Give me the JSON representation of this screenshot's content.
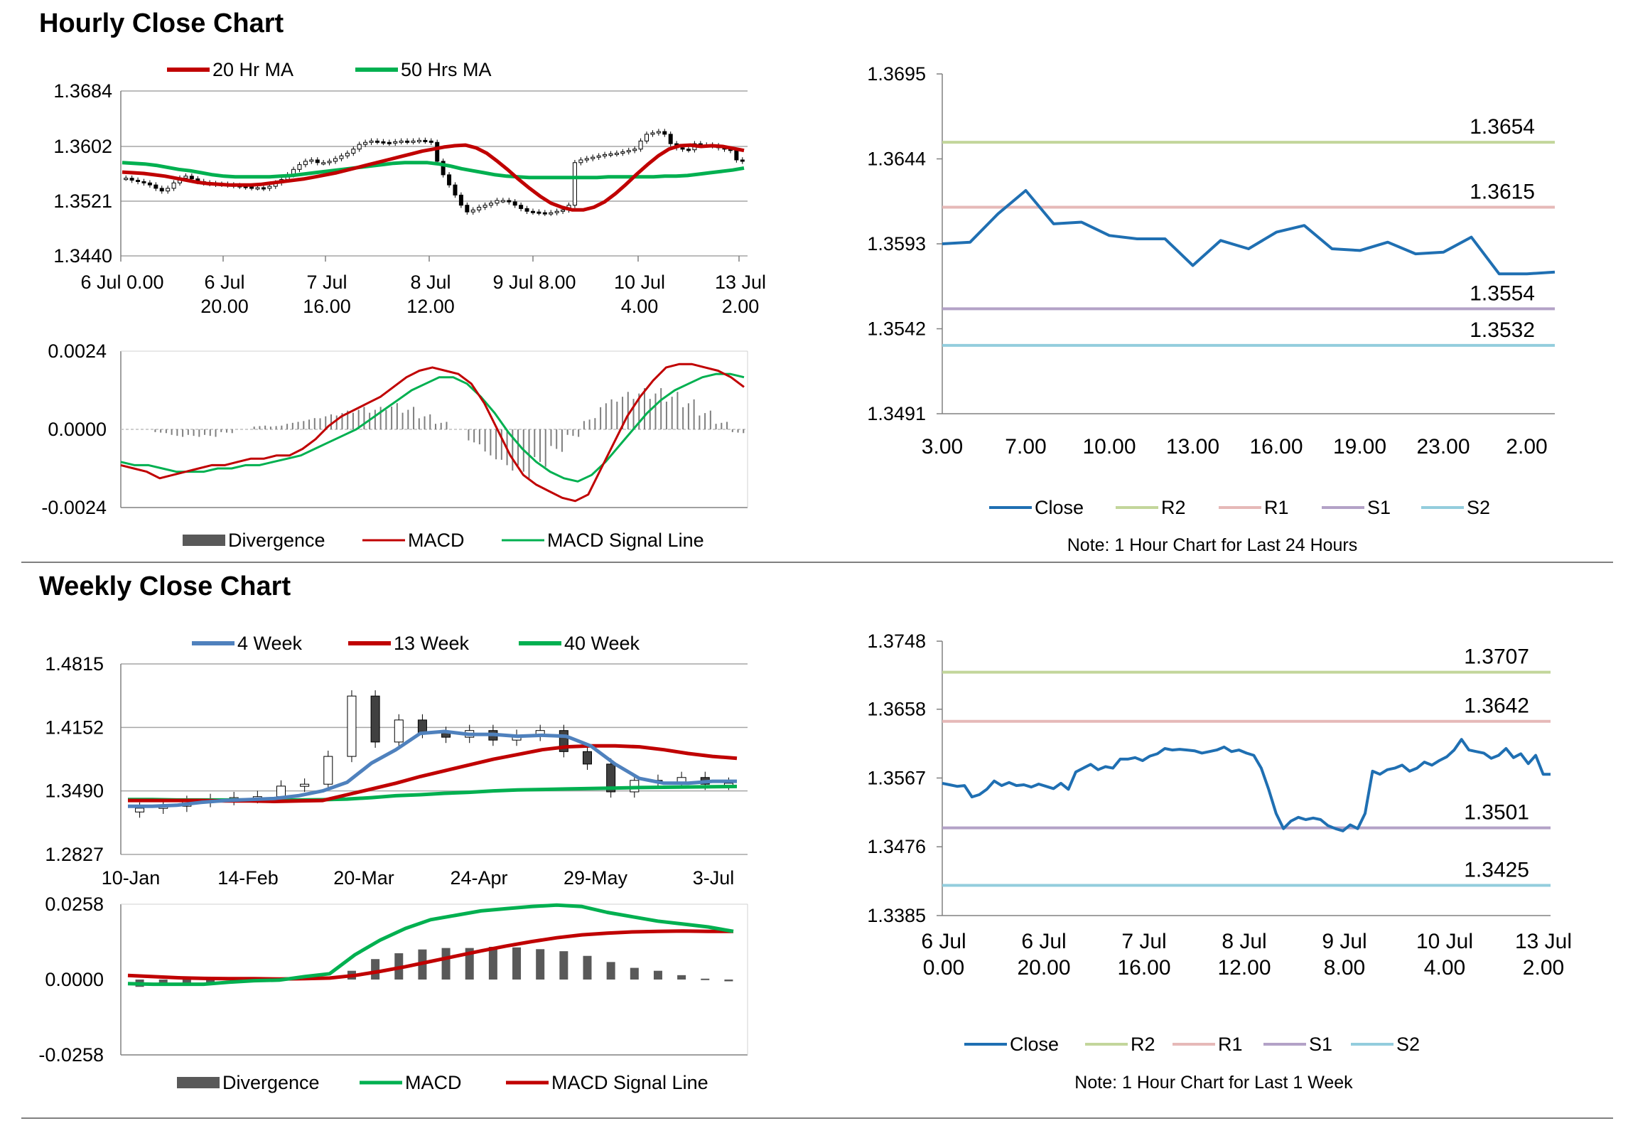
{
  "titles": {
    "hourly": "Hourly Close Chart",
    "weekly": "Weekly Close Chart"
  },
  "colors": {
    "red": "#c00000",
    "green": "#00b050",
    "blue": "#4f81bd",
    "closeBlue": "#1f6fb2",
    "r2": "#c3d69b",
    "r1": "#e6b9b8",
    "s1": "#b3a2c7",
    "s2": "#93cddd",
    "divergence": "#595959",
    "grid": "#a6a6a6"
  },
  "chart_data": [
    {
      "id": "hourly-price",
      "type": "candlestick",
      "legend": [
        "20 Hr MA",
        "50 Hrs MA"
      ],
      "yticks": [
        "1.3684",
        "1.3602",
        "1.3521",
        "1.3440"
      ],
      "ylim": [
        1.344,
        1.3684
      ],
      "xticks": [
        [
          "6 Jul 0.00",
          ""
        ],
        [
          "6 Jul",
          "20.00"
        ],
        [
          "7 Jul",
          "16.00"
        ],
        [
          "8 Jul",
          "12.00"
        ],
        [
          "9 Jul 8.00",
          ""
        ],
        [
          "10 Jul",
          "4.00"
        ],
        [
          "13 Jul",
          "2.00"
        ]
      ],
      "closes": [
        1.3555,
        1.3552,
        1.355,
        1.3548,
        1.3545,
        1.354,
        1.3536,
        1.354,
        1.3548,
        1.3555,
        1.3558,
        1.3554,
        1.355,
        1.3548,
        1.3547,
        1.3546,
        1.3546,
        1.3545,
        1.3544,
        1.3543,
        1.3542,
        1.3541,
        1.3541,
        1.354,
        1.3543,
        1.3548,
        1.3553,
        1.356,
        1.3568,
        1.3575,
        1.358,
        1.3582,
        1.3578,
        1.3578,
        1.358,
        1.3584,
        1.3588,
        1.3592,
        1.3598,
        1.3605,
        1.3608,
        1.361,
        1.3609,
        1.3608,
        1.3607,
        1.3609,
        1.361,
        1.3609,
        1.361,
        1.3611,
        1.361,
        1.3608,
        1.358,
        1.356,
        1.3545,
        1.353,
        1.3515,
        1.3505,
        1.3508,
        1.3512,
        1.3515,
        1.3518,
        1.3522,
        1.3522,
        1.352,
        1.3515,
        1.351,
        1.3506,
        1.3505,
        1.3504,
        1.3503,
        1.3504,
        1.3506,
        1.3508,
        1.3515,
        1.3578,
        1.3582,
        1.3584,
        1.3586,
        1.3588,
        1.359,
        1.3591,
        1.3592,
        1.3594,
        1.3596,
        1.3598,
        1.361,
        1.362,
        1.3622,
        1.3624,
        1.362,
        1.3606,
        1.36,
        1.3598,
        1.3597,
        1.3606,
        1.3604,
        1.3604,
        1.3603,
        1.36,
        1.3598,
        1.3596,
        1.3582,
        1.358
      ],
      "ma20": [
        1.3564,
        1.3563,
        1.3562,
        1.356,
        1.3558,
        1.3555,
        1.3552,
        1.3549,
        1.3547,
        1.3546,
        1.3545,
        1.3545,
        1.3545,
        1.3546,
        1.3548,
        1.355,
        1.3552,
        1.3554,
        1.3557,
        1.356,
        1.3563,
        1.3567,
        1.3571,
        1.3575,
        1.3579,
        1.3583,
        1.3587,
        1.3591,
        1.3595,
        1.3598,
        1.3601,
        1.3603,
        1.3604,
        1.36,
        1.3592,
        1.358,
        1.3567,
        1.3553,
        1.354,
        1.3528,
        1.3518,
        1.3512,
        1.3508,
        1.3508,
        1.3512,
        1.352,
        1.3532,
        1.3546,
        1.3561,
        1.3575,
        1.3588,
        1.3598,
        1.3603,
        1.3604,
        1.3602,
        1.3603,
        1.3602,
        1.3599,
        1.3596
      ],
      "ma50": [
        1.3578,
        1.3577,
        1.3576,
        1.3574,
        1.3571,
        1.3568,
        1.3566,
        1.3563,
        1.356,
        1.3558,
        1.3557,
        1.3557,
        1.3557,
        1.3557,
        1.3558,
        1.3559,
        1.3561,
        1.3563,
        1.3565,
        1.3567,
        1.3569,
        1.3571,
        1.3573,
        1.3575,
        1.3577,
        1.3578,
        1.3578,
        1.3578,
        1.3576,
        1.3573,
        1.3569,
        1.3566,
        1.3563,
        1.356,
        1.3558,
        1.3557,
        1.3556,
        1.3556,
        1.3556,
        1.3556,
        1.3556,
        1.3556,
        1.3556,
        1.3557,
        1.3557,
        1.3557,
        1.3557,
        1.3557,
        1.3558,
        1.3558,
        1.3559,
        1.3561,
        1.3563,
        1.3565,
        1.3567,
        1.357
      ]
    },
    {
      "id": "hourly-macd",
      "type": "line+bar",
      "legend": [
        "Divergence",
        "MACD",
        "MACD Signal Line"
      ],
      "yticks": [
        "0.0024",
        "0.0000",
        "-0.0024"
      ],
      "ylim": [
        -0.0024,
        0.0024
      ],
      "macd": [
        -0.0011,
        -0.0012,
        -0.0013,
        -0.0015,
        -0.0014,
        -0.0013,
        -0.0012,
        -0.0011,
        -0.0011,
        -0.001,
        -0.0009,
        -0.0009,
        -0.0008,
        -0.0008,
        -0.0006,
        -0.0003,
        0.0001,
        0.0004,
        0.0006,
        0.0008,
        0.001,
        0.0013,
        0.0016,
        0.0018,
        0.0019,
        0.0018,
        0.0017,
        0.0014,
        0.0008,
        0.0,
        -0.0008,
        -0.0014,
        -0.0017,
        -0.0019,
        -0.0021,
        -0.0022,
        -0.002,
        -0.0012,
        -0.0004,
        0.0004,
        0.001,
        0.0015,
        0.0019,
        0.002,
        0.002,
        0.0019,
        0.0018,
        0.0016,
        0.0013
      ],
      "signal": [
        -0.001,
        -0.0011,
        -0.0011,
        -0.0012,
        -0.0013,
        -0.0013,
        -0.0013,
        -0.0012,
        -0.0012,
        -0.0011,
        -0.0011,
        -0.001,
        -0.0009,
        -0.0008,
        -0.0006,
        -0.0004,
        -0.0002,
        0.0,
        0.0003,
        0.0006,
        0.0009,
        0.0012,
        0.0014,
        0.0016,
        0.0016,
        0.0014,
        0.001,
        0.0005,
        -0.0001,
        -0.0006,
        -0.001,
        -0.0013,
        -0.0015,
        -0.0016,
        -0.0014,
        -0.001,
        -0.0005,
        0.0,
        0.0005,
        0.0009,
        0.0012,
        0.0014,
        0.0016,
        0.0017,
        0.0017,
        0.0016
      ],
      "divergence": [
        0.0,
        0.0,
        -0.0001,
        -0.0002,
        -0.0002,
        -0.0002,
        -0.0001,
        0.0,
        0.0001,
        0.0001,
        0.0002,
        0.0003,
        0.0004,
        0.0005,
        0.0006,
        0.0006,
        0.0007,
        0.0006,
        0.0004,
        0.0002,
        0.0,
        -0.0004,
        -0.0008,
        -0.0011,
        -0.0013,
        -0.001,
        -0.0006,
        -0.0002,
        0.0003,
        0.0008,
        0.001,
        0.0011,
        0.0011,
        0.001,
        0.0008,
        0.0005,
        0.0002,
        -0.0001
      ]
    },
    {
      "id": "hourly-close-24h",
      "type": "line",
      "yticks": [
        "1.3695",
        "1.3644",
        "1.3593",
        "1.3542",
        "1.3491"
      ],
      "ylim": [
        1.3491,
        1.3695
      ],
      "xticks": [
        "3.00",
        "7.00",
        "10.00",
        "13.00",
        "16.00",
        "19.00",
        "23.00",
        "2.00"
      ],
      "close": [
        1.3593,
        1.3594,
        1.3611,
        1.3625,
        1.3605,
        1.3606,
        1.3598,
        1.3596,
        1.3596,
        1.358,
        1.3595,
        1.359,
        1.36,
        1.3604,
        1.359,
        1.3589,
        1.3594,
        1.3587,
        1.3588,
        1.3597,
        1.3575,
        1.3575,
        1.3576
      ],
      "levels": [
        {
          "name": "R2",
          "value": "1.3654"
        },
        {
          "name": "R1",
          "value": "1.3615"
        },
        {
          "name": "S1",
          "value": "1.3554"
        },
        {
          "name": "S2",
          "value": "1.3532"
        }
      ],
      "legend": [
        "Close",
        "R2",
        "R1",
        "S1",
        "S2"
      ],
      "note": "Note: 1 Hour Chart for Last 24 Hours"
    },
    {
      "id": "weekly-price",
      "type": "candlestick",
      "legend": [
        "4 Week",
        "13 Week",
        "40 Week"
      ],
      "yticks": [
        "1.4815",
        "1.4152",
        "1.3490",
        "1.2827"
      ],
      "ylim": [
        1.2827,
        1.4815
      ],
      "xticks": [
        "10-Jan",
        "14-Feb",
        "20-Mar",
        "24-Apr",
        "29-May",
        "3-Jul"
      ],
      "closes": [
        1.331,
        1.333,
        1.338,
        1.34,
        1.342,
        1.343,
        1.354,
        1.356,
        1.385,
        1.448,
        1.4,
        1.423,
        1.41,
        1.405,
        1.412,
        1.402,
        1.407,
        1.412,
        1.39,
        1.377,
        1.348,
        1.36,
        1.358,
        1.363,
        1.356,
        1.357
      ],
      "ma4": [
        1.333,
        1.333,
        1.334,
        1.337,
        1.339,
        1.34,
        1.341,
        1.344,
        1.349,
        1.358,
        1.378,
        1.392,
        1.409,
        1.411,
        1.408,
        1.408,
        1.406,
        1.407,
        1.406,
        1.396,
        1.377,
        1.362,
        1.357,
        1.357,
        1.359,
        1.359
      ],
      "ma13": [
        1.339,
        1.339,
        1.339,
        1.339,
        1.3385,
        1.3385,
        1.338,
        1.3385,
        1.339,
        1.345,
        1.351,
        1.357,
        1.364,
        1.37,
        1.376,
        1.382,
        1.387,
        1.392,
        1.395,
        1.396,
        1.396,
        1.395,
        1.392,
        1.388,
        1.385,
        1.383
      ],
      "ma40": [
        1.34,
        1.34,
        1.3395,
        1.3395,
        1.3395,
        1.3395,
        1.3395,
        1.3395,
        1.3398,
        1.3405,
        1.342,
        1.344,
        1.345,
        1.3465,
        1.3475,
        1.349,
        1.35,
        1.3505,
        1.351,
        1.3515,
        1.352,
        1.3525,
        1.3528,
        1.3531,
        1.3534,
        1.3536
      ]
    },
    {
      "id": "weekly-macd",
      "type": "line+bar",
      "legend": [
        "Divergence",
        "MACD",
        "MACD Signal Line"
      ],
      "yticks": [
        "0.0258",
        "0.0000",
        "-0.0258"
      ],
      "ylim": [
        -0.0258,
        0.0258
      ],
      "macd": [
        -0.0014,
        -0.0016,
        -0.0016,
        -0.0016,
        -0.0009,
        -0.0004,
        -0.0002,
        0.001,
        0.002,
        0.0085,
        0.0135,
        0.0175,
        0.0205,
        0.022,
        0.0235,
        0.0243,
        0.025,
        0.0255,
        0.025,
        0.023,
        0.0215,
        0.02,
        0.019,
        0.018,
        0.0165
      ],
      "signal": [
        0.0014,
        0.001,
        0.0006,
        0.0004,
        0.0003,
        0.0003,
        0.0002,
        0.0003,
        0.0005,
        0.0014,
        0.0028,
        0.0044,
        0.0062,
        0.008,
        0.0098,
        0.0115,
        0.013,
        0.0143,
        0.0153,
        0.0159,
        0.0163,
        0.0165,
        0.0166,
        0.0165,
        0.0165
      ],
      "divergence": [
        -0.0025,
        -0.002,
        -0.0018,
        -0.0014,
        -0.0008,
        -0.0005,
        -0.0003,
        0.0004,
        0.001,
        0.003,
        0.007,
        0.009,
        0.0103,
        0.0108,
        0.0108,
        0.0112,
        0.011,
        0.0104,
        0.0097,
        0.0081,
        0.006,
        0.004,
        0.003,
        0.0015,
        0.0003,
        -0.0006
      ]
    },
    {
      "id": "weekly-close-1w",
      "type": "line",
      "yticks": [
        "1.3748",
        "1.3658",
        "1.3567",
        "1.3476",
        "1.3385"
      ],
      "ylim": [
        1.3385,
        1.3748
      ],
      "xticks": [
        [
          "6 Jul",
          "0.00"
        ],
        [
          "6 Jul",
          "20.00"
        ],
        [
          "7 Jul",
          "16.00"
        ],
        [
          "8 Jul",
          "12.00"
        ],
        [
          "9 Jul",
          "8.00"
        ],
        [
          "10 Jul",
          "4.00"
        ],
        [
          "13 Jul",
          "2.00"
        ]
      ],
      "close": [
        1.356,
        1.3558,
        1.3556,
        1.3557,
        1.3542,
        1.3545,
        1.3552,
        1.3563,
        1.3557,
        1.3561,
        1.3557,
        1.3558,
        1.3555,
        1.3559,
        1.3556,
        1.3553,
        1.356,
        1.3552,
        1.3575,
        1.358,
        1.3585,
        1.3578,
        1.3582,
        1.358,
        1.3592,
        1.3592,
        1.3594,
        1.359,
        1.3596,
        1.3599,
        1.3606,
        1.3604,
        1.3605,
        1.3604,
        1.3603,
        1.36,
        1.3602,
        1.3604,
        1.3608,
        1.3602,
        1.3604,
        1.36,
        1.3597,
        1.358,
        1.3552,
        1.352,
        1.35,
        1.351,
        1.3515,
        1.3512,
        1.3514,
        1.3512,
        1.3504,
        1.35,
        1.3497,
        1.3505,
        1.35,
        1.352,
        1.3576,
        1.3572,
        1.3578,
        1.358,
        1.3584,
        1.3576,
        1.358,
        1.3588,
        1.3584,
        1.359,
        1.3595,
        1.3604,
        1.3618,
        1.3604,
        1.3602,
        1.36,
        1.3593,
        1.3597,
        1.3606,
        1.3594,
        1.3599,
        1.3586,
        1.3597,
        1.3572,
        1.3572
      ],
      "levels": [
        {
          "name": "R2",
          "value": "1.3707"
        },
        {
          "name": "R1",
          "value": "1.3642"
        },
        {
          "name": "S1",
          "value": "1.3501"
        },
        {
          "name": "S2",
          "value": "1.3425"
        }
      ],
      "legend": [
        "Close",
        "R2",
        "R1",
        "S1",
        "S2"
      ],
      "note": "Note: 1 Hour Chart for  Last 1 Week"
    }
  ]
}
